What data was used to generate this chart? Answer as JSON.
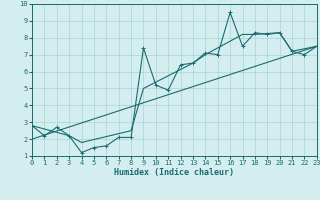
{
  "xlabel": "Humidex (Indice chaleur)",
  "bg_color": "#d4eef0",
  "grid_color": "#a8d4d8",
  "line_color": "#1a6b6e",
  "xlim": [
    0,
    23
  ],
  "ylim": [
    1,
    10
  ],
  "xticks": [
    0,
    1,
    2,
    3,
    4,
    5,
    6,
    7,
    8,
    9,
    10,
    11,
    12,
    13,
    14,
    15,
    16,
    17,
    18,
    19,
    20,
    21,
    22,
    23
  ],
  "yticks": [
    1,
    2,
    3,
    4,
    5,
    6,
    7,
    8,
    9,
    10
  ],
  "series1_x": [
    0,
    1,
    2,
    3,
    4,
    5,
    6,
    7,
    8,
    9,
    10,
    11,
    12,
    13,
    14,
    15,
    16,
    17,
    18,
    19,
    20,
    21,
    22,
    23
  ],
  "series1_y": [
    2.8,
    2.2,
    2.7,
    2.2,
    1.2,
    1.5,
    1.6,
    2.1,
    2.1,
    7.4,
    5.2,
    4.9,
    6.4,
    6.5,
    7.1,
    7.0,
    9.5,
    7.5,
    8.3,
    8.2,
    8.3,
    7.2,
    7.0,
    7.5
  ],
  "series2_x": [
    0,
    23
  ],
  "series2_y": [
    2.0,
    7.5
  ],
  "series3_x": [
    0,
    3,
    4,
    8,
    9,
    13,
    14,
    17,
    18,
    20,
    21,
    23
  ],
  "series3_y": [
    2.8,
    2.2,
    1.8,
    2.5,
    5.0,
    6.5,
    7.0,
    8.2,
    8.2,
    8.3,
    7.2,
    7.5
  ]
}
